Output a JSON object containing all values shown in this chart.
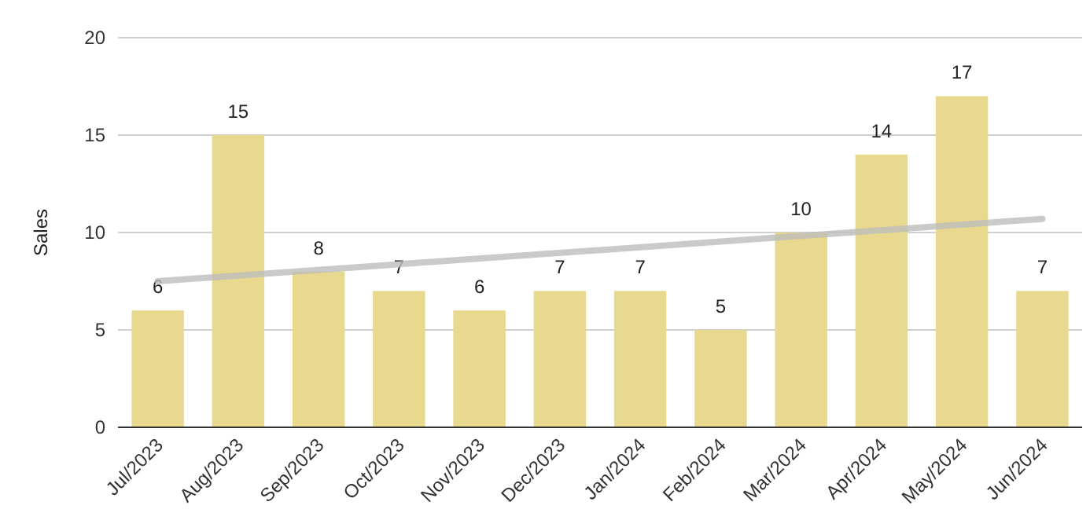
{
  "chart_data": {
    "type": "bar",
    "ylabel": "Sales",
    "categories": [
      "Jul/2023",
      "Aug/2023",
      "Sep/2023",
      "Oct/2023",
      "Nov/2023",
      "Dec/2023",
      "Jan/2024",
      "Feb/2024",
      "Mar/2024",
      "Apr/2024",
      "May/2024",
      "Jun/2024"
    ],
    "series": [
      {
        "color": "#e8d98e",
        "values": [
          6,
          15,
          8,
          7,
          6,
          7,
          7,
          5,
          10,
          14,
          17,
          7
        ],
        "value_labels": [
          "6",
          "15",
          "8",
          "7",
          "6",
          "7",
          "7",
          "5",
          "10",
          "14",
          "17",
          "7"
        ]
      },
      {
        "type": "line",
        "color": "#bdbdbd",
        "x": [
          "Jul/2023",
          "Jun/2024"
        ],
        "values": [
          7.5,
          10.7
        ]
      }
    ],
    "ylim": [
      0,
      20
    ],
    "yticks": [
      0,
      5,
      10,
      15,
      20
    ],
    "grid": "y"
  }
}
